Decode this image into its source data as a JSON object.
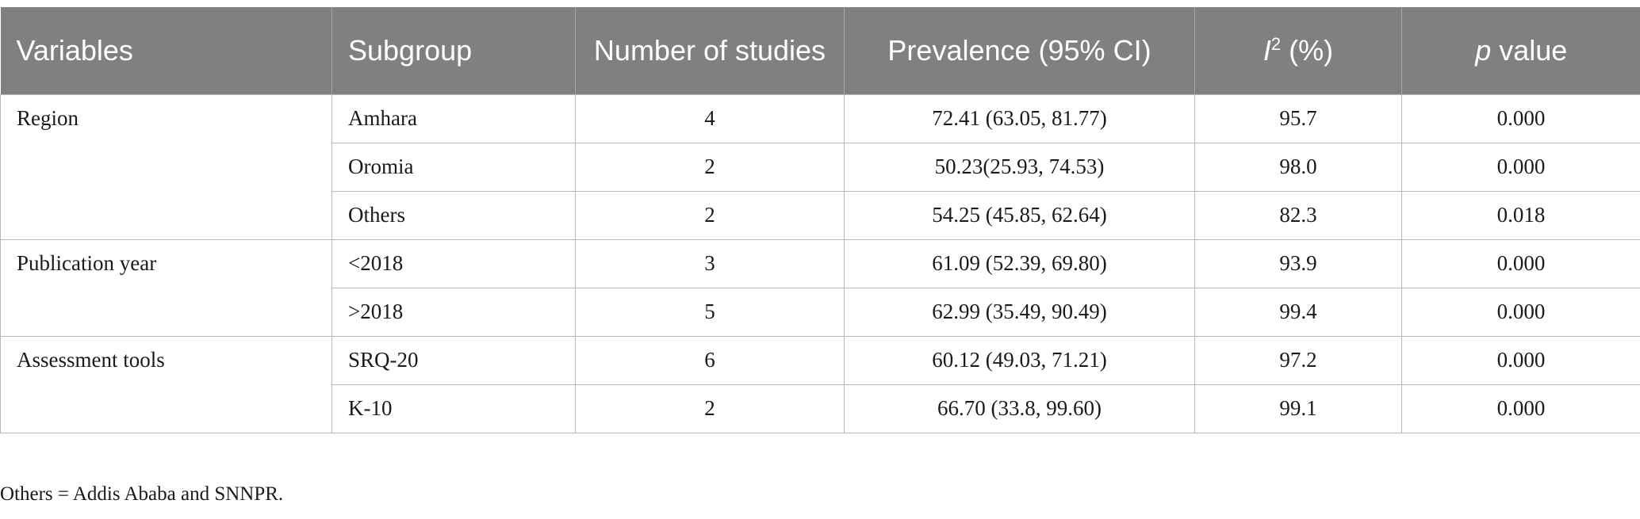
{
  "table": {
    "headers": {
      "variables": "Variables",
      "subgroup": "Subgroup",
      "num_studies": "Number of studies",
      "prevalence": "Prevalence (95% CI)",
      "i2_symbol": "I",
      "i2_sup": "2",
      "i2_suffix": " (%)",
      "p_symbol": "p",
      "p_suffix": " value"
    },
    "groups": [
      {
        "variable": "Region",
        "rows": [
          {
            "subgroup": "Amhara",
            "n": "4",
            "prevalence": "72.41 (63.05, 81.77)",
            "i2": "95.7",
            "p": "0.000"
          },
          {
            "subgroup": "Oromia",
            "n": "2",
            "prevalence": "50.23(25.93, 74.53)",
            "i2": "98.0",
            "p": "0.000"
          },
          {
            "subgroup": "Others",
            "n": "2",
            "prevalence": "54.25 (45.85, 62.64)",
            "i2": "82.3",
            "p": "0.018"
          }
        ]
      },
      {
        "variable": "Publication year",
        "rows": [
          {
            "subgroup": "<2018",
            "n": "3",
            "prevalence": "61.09 (52.39, 69.80)",
            "i2": "93.9",
            "p": "0.000"
          },
          {
            "subgroup": ">2018",
            "n": "5",
            "prevalence": "62.99 (35.49, 90.49)",
            "i2": "99.4",
            "p": "0.000"
          }
        ]
      },
      {
        "variable": "Assessment tools",
        "rows": [
          {
            "subgroup": "SRQ-20",
            "n": "6",
            "prevalence": "60.12 (49.03, 71.21)",
            "i2": "97.2",
            "p": "0.000"
          },
          {
            "subgroup": "K-10",
            "n": "2",
            "prevalence": "66.70 (33.8, 99.60)",
            "i2": "99.1",
            "p": "0.000"
          }
        ]
      }
    ]
  },
  "footnote": "Others = Addis Ababa and SNNPR."
}
